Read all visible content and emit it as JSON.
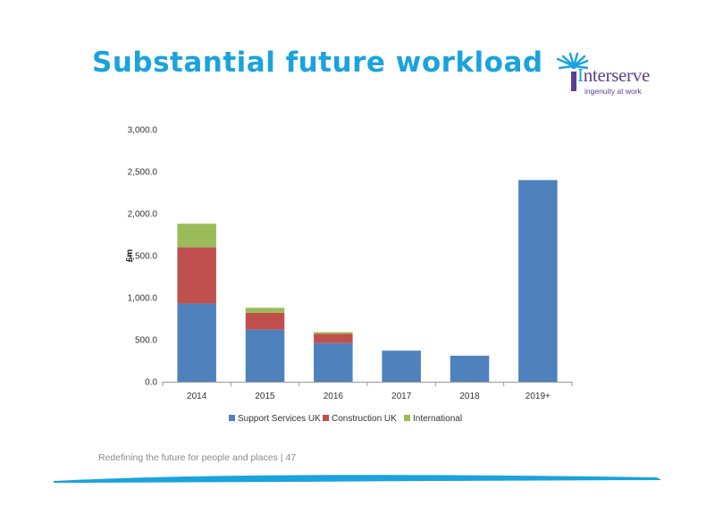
{
  "slide": {
    "title": "Substantial future workload",
    "footer": "Redefining the future for people and places | 47"
  },
  "logo": {
    "name": "Interserve",
    "tagline": "ingenuity at work",
    "colors": {
      "primary": "#5b3f91",
      "accent": "#1aa3dd"
    }
  },
  "chart_data": {
    "type": "bar",
    "stacked": true,
    "ylabel": "£m",
    "ylim": [
      0,
      3000
    ],
    "ytick_labels": [
      "0.0",
      "500.0",
      "1,000.0",
      "1,500.0",
      "2,000.0",
      "2,500.0",
      "3,000.0"
    ],
    "grid": false,
    "legend_position": "bottom",
    "categories": [
      "2014",
      "2015",
      "2016",
      "2017",
      "2018",
      "2019+"
    ],
    "series": [
      {
        "name": "Support Services UK",
        "color": "#4f81bd",
        "values": [
          930,
          620,
          460,
          370,
          310,
          2400
        ]
      },
      {
        "name": "Construction UK",
        "color": "#c0504d",
        "values": [
          670,
          200,
          110,
          0,
          0,
          0
        ]
      },
      {
        "name": "International",
        "color": "#9bbb59",
        "values": [
          280,
          60,
          20,
          0,
          0,
          0
        ]
      }
    ]
  }
}
